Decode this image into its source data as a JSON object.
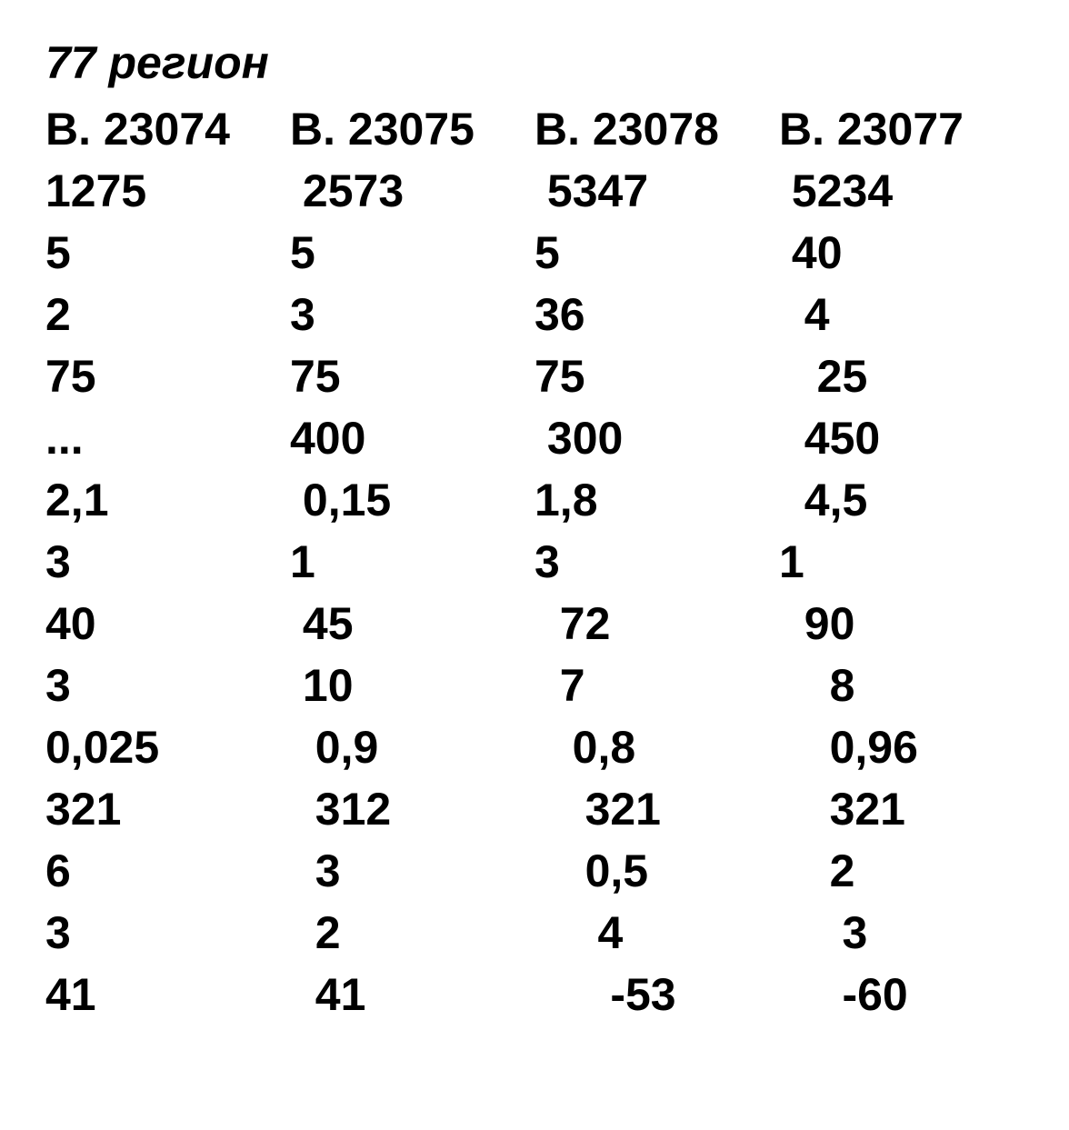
{
  "title": "77 регион",
  "table": {
    "headers": [
      "В. 23074",
      "В. 23075",
      "В. 23078",
      "В. 23077"
    ],
    "rows": [
      [
        "1275",
        " 2573",
        " 5347",
        " 5234"
      ],
      [
        "5",
        "5",
        "5",
        " 40"
      ],
      [
        "2",
        "3",
        "36",
        "  4"
      ],
      [
        "75",
        "75",
        "75",
        "   25"
      ],
      [
        "...",
        "400",
        " 300",
        "  450"
      ],
      [
        "2,1",
        " 0,15",
        "1,8",
        "  4,5"
      ],
      [
        "3",
        "1",
        "3",
        "1"
      ],
      [
        "40",
        " 45",
        "  72",
        "  90"
      ],
      [
        "3",
        " 10",
        "  7",
        "    8"
      ],
      [
        "0,025",
        "  0,9",
        "   0,8",
        "    0,96"
      ],
      [
        "321",
        "  312",
        "    321",
        "    321"
      ],
      [
        "6",
        "  3",
        "    0,5",
        "    2"
      ],
      [
        "3",
        "  2",
        "     4",
        "     3"
      ],
      [
        "41",
        "  41",
        "      -53",
        "     -60"
      ]
    ]
  },
  "styling": {
    "background_color": "#ffffff",
    "text_color": "#000000",
    "title_fontsize": 50,
    "cell_fontsize": 50,
    "font_weight": "bold",
    "title_style": "italic",
    "font_family": "Arial",
    "column_count": 4,
    "row_count": 15
  }
}
